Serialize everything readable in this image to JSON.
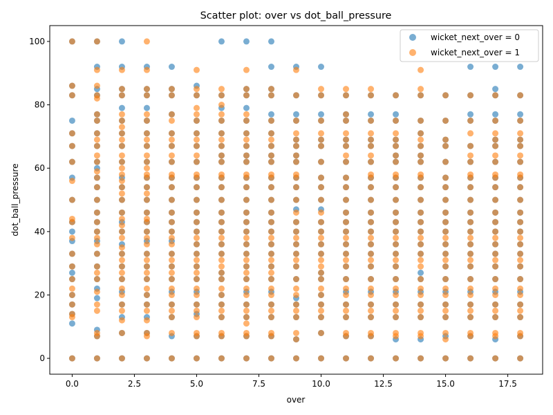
{
  "chart_data": {
    "type": "scatter",
    "title": "Scatter plot: over vs dot_ball_pressure",
    "xlabel": "over",
    "ylabel": "dot_ball_pressure",
    "xlim": [
      -0.9,
      18.9
    ],
    "ylim": [
      -5,
      105
    ],
    "xticks": [
      0.0,
      2.5,
      5.0,
      7.5,
      10.0,
      12.5,
      15.0,
      17.5
    ],
    "xtick_labels": [
      "0.0",
      "2.5",
      "5.0",
      "7.5",
      "10.0",
      "12.5",
      "15.0",
      "17.5"
    ],
    "yticks": [
      0,
      20,
      40,
      60,
      80,
      100
    ],
    "ytick_labels": [
      "0",
      "20",
      "40",
      "60",
      "80",
      "100"
    ],
    "grid": false,
    "legend_position": "top-right",
    "x_values": [
      0,
      1,
      2,
      3,
      4,
      5,
      6,
      7,
      8,
      9,
      10,
      11,
      12,
      13,
      14,
      15,
      16,
      17,
      18
    ],
    "series": [
      {
        "name": "wicket_next_over = 0",
        "color": "#1f77b4",
        "alpha": 0.6,
        "points_by_x": {
          "0": [
            0,
            11,
            14,
            17,
            20,
            25,
            27,
            29,
            33,
            37,
            40,
            43,
            50,
            57,
            62,
            67,
            71,
            75,
            83,
            86,
            100
          ],
          "1": [
            0,
            7,
            9,
            19,
            22,
            25,
            29,
            33,
            37,
            40,
            43,
            46,
            50,
            54,
            57,
            60,
            62,
            67,
            71,
            75,
            77,
            83,
            85,
            92,
            100
          ],
          "2": [
            0,
            8,
            13,
            17,
            21,
            25,
            29,
            33,
            36,
            40,
            43,
            46,
            50,
            54,
            57,
            62,
            67,
            71,
            75,
            79,
            83,
            85,
            92,
            100
          ],
          "3": [
            0,
            8,
            13,
            17,
            20,
            25,
            29,
            33,
            37,
            40,
            43,
            46,
            50,
            54,
            57,
            62,
            67,
            71,
            75,
            79,
            83,
            85,
            92
          ],
          "4": [
            0,
            7,
            13,
            17,
            21,
            25,
            29,
            33,
            37,
            40,
            43,
            46,
            50,
            54,
            57,
            62,
            67,
            71,
            77,
            83,
            85,
            92
          ],
          "5": [
            0,
            7,
            14,
            17,
            21,
            25,
            29,
            33,
            36,
            40,
            43,
            46,
            50,
            54,
            57,
            62,
            67,
            71,
            75,
            83,
            86
          ],
          "6": [
            0,
            7,
            13,
            17,
            20,
            25,
            27,
            33,
            36,
            40,
            43,
            46,
            50,
            54,
            57,
            62,
            64,
            67,
            71,
            75,
            79,
            83,
            100
          ],
          "7": [
            0,
            7,
            13,
            17,
            21,
            25,
            29,
            33,
            36,
            40,
            43,
            46,
            50,
            54,
            57,
            62,
            64,
            67,
            71,
            75,
            79,
            83,
            85,
            100
          ],
          "8": [
            0,
            7,
            13,
            17,
            21,
            25,
            29,
            33,
            36,
            40,
            43,
            46,
            50,
            54,
            57,
            62,
            64,
            67,
            71,
            75,
            77,
            83,
            85,
            92,
            100
          ],
          "9": [
            0,
            6,
            13,
            17,
            19,
            25,
            29,
            33,
            36,
            40,
            43,
            47,
            50,
            54,
            57,
            62,
            64,
            67,
            69,
            75,
            77,
            83,
            92
          ],
          "10": [
            0,
            8,
            13,
            17,
            20,
            25,
            27,
            33,
            36,
            40,
            43,
            47,
            50,
            54,
            57,
            62,
            67,
            69,
            75,
            77,
            83,
            92
          ],
          "11": [
            0,
            7,
            13,
            17,
            21,
            25,
            29,
            33,
            36,
            40,
            43,
            46,
            50,
            54,
            57,
            62,
            67,
            69,
            75,
            77,
            83
          ],
          "12": [
            0,
            7,
            13,
            17,
            21,
            25,
            29,
            33,
            36,
            40,
            43,
            46,
            50,
            54,
            57,
            62,
            67,
            69,
            75,
            77,
            83
          ],
          "13": [
            0,
            6,
            13,
            17,
            21,
            25,
            29,
            33,
            36,
            40,
            43,
            46,
            50,
            54,
            57,
            62,
            64,
            67,
            69,
            75,
            77,
            83
          ],
          "14": [
            0,
            6,
            13,
            17,
            21,
            25,
            27,
            33,
            36,
            40,
            43,
            46,
            50,
            54,
            57,
            62,
            64,
            67,
            71,
            75,
            83
          ],
          "15": [
            0,
            7,
            13,
            17,
            21,
            25,
            29,
            33,
            36,
            40,
            43,
            46,
            50,
            54,
            57,
            62,
            67,
            69,
            75,
            83
          ],
          "16": [
            0,
            7,
            13,
            17,
            21,
            25,
            29,
            33,
            36,
            40,
            43,
            46,
            50,
            54,
            57,
            62,
            67,
            75,
            77,
            83,
            92
          ],
          "17": [
            0,
            6,
            13,
            17,
            21,
            25,
            29,
            33,
            36,
            40,
            43,
            46,
            50,
            54,
            57,
            62,
            67,
            69,
            75,
            77,
            83,
            85,
            92
          ],
          "18": [
            0,
            7,
            13,
            17,
            21,
            25,
            29,
            33,
            36,
            40,
            43,
            46,
            50,
            54,
            57,
            62,
            67,
            69,
            75,
            77,
            83,
            92
          ]
        }
      },
      {
        "name": "wicket_next_over = 1",
        "color": "#ff7f0e",
        "alpha": 0.6,
        "points_by_x": {
          "0": [
            0,
            13,
            14,
            17,
            20,
            22,
            25,
            29,
            33,
            38,
            43,
            44,
            50,
            56,
            62,
            67,
            71,
            83,
            86,
            100
          ],
          "1": [
            0,
            7,
            8,
            15,
            17,
            21,
            25,
            27,
            29,
            33,
            36,
            38,
            40,
            43,
            46,
            50,
            54,
            57,
            59,
            62,
            64,
            67,
            69,
            71,
            75,
            77,
            82,
            83,
            86,
            91,
            100
          ],
          "2": [
            0,
            8,
            12,
            15,
            17,
            20,
            22,
            25,
            27,
            29,
            31,
            33,
            35,
            38,
            40,
            42,
            44,
            46,
            50,
            52,
            54,
            56,
            58,
            60,
            62,
            64,
            67,
            69,
            71,
            73,
            75,
            77,
            83,
            85,
            91
          ],
          "3": [
            0,
            7,
            8,
            12,
            15,
            17,
            20,
            22,
            25,
            27,
            29,
            31,
            33,
            36,
            38,
            40,
            43,
            44,
            46,
            50,
            52,
            54,
            57,
            58,
            60,
            62,
            64,
            67,
            69,
            71,
            75,
            77,
            83,
            85,
            91,
            100
          ],
          "4": [
            0,
            8,
            13,
            15,
            17,
            20,
            22,
            25,
            27,
            29,
            31,
            33,
            36,
            38,
            40,
            43,
            46,
            50,
            54,
            57,
            58,
            62,
            64,
            67,
            69,
            71,
            75,
            77,
            83,
            85
          ],
          "5": [
            0,
            7,
            8,
            13,
            15,
            17,
            20,
            22,
            25,
            27,
            29,
            31,
            33,
            36,
            38,
            40,
            43,
            46,
            50,
            54,
            57,
            58,
            62,
            64,
            67,
            69,
            71,
            75,
            77,
            79,
            83,
            85,
            91
          ],
          "6": [
            0,
            7,
            8,
            13,
            15,
            17,
            20,
            22,
            25,
            27,
            29,
            31,
            33,
            36,
            38,
            40,
            43,
            46,
            50,
            54,
            57,
            58,
            62,
            64,
            67,
            69,
            71,
            75,
            77,
            80,
            83,
            85
          ],
          "7": [
            0,
            7,
            8,
            11,
            13,
            15,
            17,
            20,
            22,
            25,
            27,
            29,
            31,
            33,
            36,
            38,
            40,
            43,
            46,
            50,
            54,
            57,
            58,
            62,
            64,
            67,
            69,
            71,
            75,
            77,
            83,
            85,
            91
          ],
          "8": [
            0,
            7,
            8,
            13,
            15,
            17,
            20,
            22,
            25,
            27,
            29,
            31,
            33,
            36,
            38,
            40,
            43,
            46,
            50,
            54,
            57,
            58,
            62,
            64,
            67,
            69,
            71,
            75,
            83,
            85
          ],
          "9": [
            0,
            6,
            8,
            13,
            15,
            17,
            20,
            22,
            25,
            29,
            31,
            33,
            36,
            38,
            40,
            43,
            46,
            50,
            54,
            57,
            58,
            62,
            64,
            67,
            69,
            71,
            75,
            83,
            91
          ],
          "10": [
            0,
            8,
            13,
            15,
            17,
            20,
            22,
            25,
            27,
            29,
            31,
            33,
            36,
            38,
            40,
            43,
            46,
            50,
            54,
            57,
            62,
            67,
            69,
            71,
            75,
            83,
            85
          ],
          "11": [
            0,
            7,
            8,
            13,
            15,
            17,
            20,
            22,
            25,
            29,
            31,
            33,
            36,
            38,
            40,
            43,
            46,
            50,
            54,
            57,
            62,
            64,
            67,
            69,
            71,
            75,
            77,
            83,
            85
          ],
          "12": [
            0,
            7,
            8,
            13,
            15,
            17,
            20,
            22,
            25,
            29,
            31,
            33,
            36,
            38,
            40,
            43,
            46,
            50,
            54,
            57,
            58,
            62,
            64,
            67,
            69,
            71,
            75,
            83,
            85
          ],
          "13": [
            0,
            7,
            8,
            13,
            15,
            17,
            20,
            22,
            25,
            29,
            31,
            33,
            36,
            38,
            40,
            43,
            46,
            50,
            54,
            57,
            58,
            62,
            64,
            67,
            69,
            71,
            75,
            83
          ],
          "14": [
            0,
            7,
            8,
            13,
            15,
            17,
            20,
            22,
            25,
            29,
            31,
            33,
            36,
            38,
            40,
            43,
            46,
            50,
            54,
            57,
            58,
            62,
            64,
            67,
            69,
            71,
            75,
            83,
            85,
            91
          ],
          "15": [
            0,
            6,
            8,
            13,
            15,
            17,
            20,
            22,
            25,
            29,
            31,
            33,
            36,
            38,
            40,
            43,
            46,
            50,
            54,
            57,
            62,
            67,
            69,
            75,
            83
          ],
          "16": [
            0,
            7,
            8,
            13,
            15,
            17,
            20,
            22,
            25,
            29,
            31,
            33,
            36,
            38,
            40,
            43,
            46,
            50,
            54,
            57,
            58,
            62,
            64,
            67,
            71,
            75,
            83
          ],
          "17": [
            0,
            7,
            8,
            13,
            15,
            17,
            20,
            22,
            25,
            29,
            31,
            33,
            36,
            38,
            40,
            43,
            46,
            50,
            54,
            57,
            58,
            62,
            64,
            67,
            69,
            71,
            75,
            83
          ],
          "18": [
            0,
            7,
            8,
            13,
            15,
            17,
            20,
            22,
            25,
            29,
            31,
            33,
            36,
            38,
            40,
            43,
            46,
            50,
            54,
            57,
            58,
            62,
            64,
            67,
            69,
            71,
            75,
            83
          ]
        }
      }
    ]
  }
}
